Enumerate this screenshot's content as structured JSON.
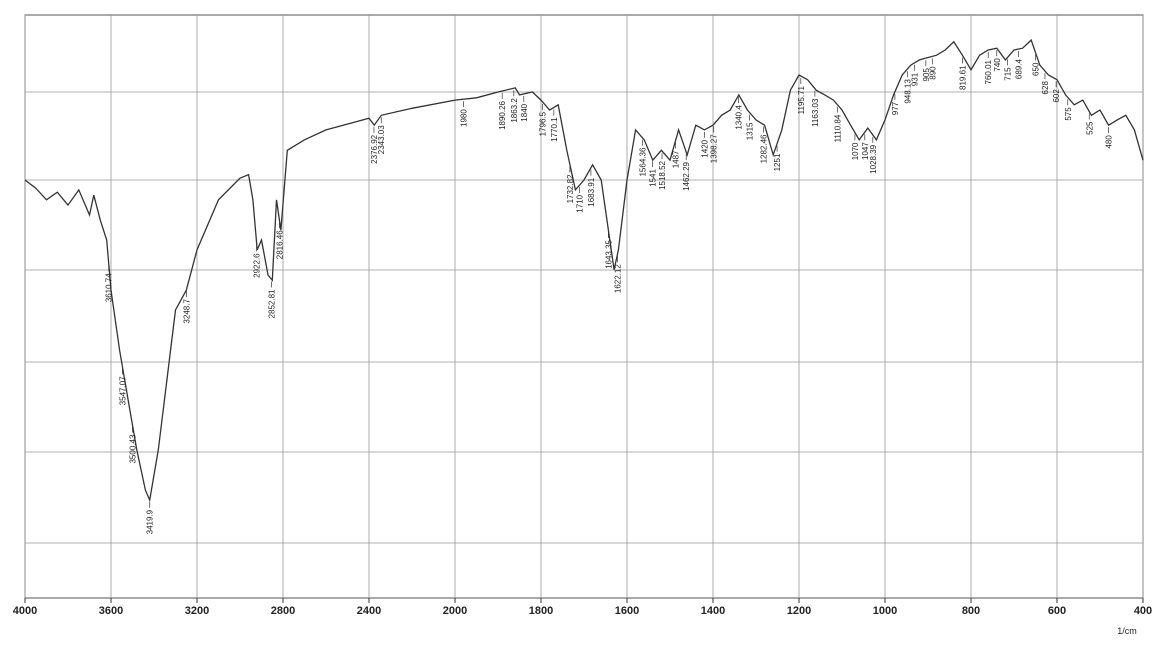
{
  "chart_data": {
    "type": "line",
    "x_label": "1/cm",
    "x": [
      4000,
      3950,
      3900,
      3850,
      3800,
      3750,
      3700,
      3680,
      3650,
      3620,
      3600,
      3560,
      3520,
      3480,
      3440,
      3420,
      3380,
      3340,
      3300,
      3250,
      3200,
      3100,
      3000,
      2960,
      2940,
      2920,
      2900,
      2870,
      2850,
      2830,
      2810,
      2780,
      2700,
      2600,
      2400,
      2376,
      2343,
      2200,
      2000,
      1950,
      1900,
      1860,
      1850,
      1820,
      1800,
      1780,
      1760,
      1740,
      1720,
      1700,
      1680,
      1660,
      1640,
      1630,
      1620,
      1600,
      1580,
      1560,
      1540,
      1520,
      1500,
      1480,
      1460,
      1440,
      1420,
      1400,
      1380,
      1360,
      1340,
      1320,
      1300,
      1280,
      1260,
      1240,
      1220,
      1200,
      1180,
      1160,
      1140,
      1120,
      1100,
      1080,
      1060,
      1040,
      1020,
      1000,
      980,
      960,
      940,
      920,
      880,
      860,
      840,
      820,
      800,
      780,
      760,
      740,
      720,
      700,
      680,
      660,
      640,
      620,
      600,
      580,
      560,
      540,
      520,
      500,
      480,
      460,
      440,
      420,
      400
    ],
    "values": [
      71.7,
      70.3,
      68.3,
      69.6,
      67.4,
      70.0,
      65.7,
      69.1,
      64.8,
      61.4,
      52.8,
      42.5,
      33.9,
      25.4,
      18.5,
      16.8,
      25.4,
      37.4,
      49.4,
      52.8,
      59.7,
      68.3,
      72.0,
      72.6,
      68.3,
      59.7,
      61.4,
      55.4,
      54.5,
      68.3,
      63.1,
      76.8,
      78.6,
      80.3,
      82.3,
      81.1,
      82.8,
      84.0,
      85.4,
      85.8,
      86.8,
      87.5,
      86.3,
      86.8,
      85.4,
      83.7,
      84.6,
      76.8,
      70.0,
      71.7,
      74.3,
      71.7,
      61.4,
      56.3,
      59.7,
      71.7,
      80.3,
      78.6,
      75.1,
      76.8,
      75.1,
      80.3,
      76.0,
      81.1,
      80.3,
      81.1,
      82.8,
      83.7,
      86.3,
      83.7,
      82.0,
      81.1,
      76.0,
      80.3,
      87.1,
      89.7,
      88.9,
      87.1,
      86.3,
      85.4,
      83.7,
      81.1,
      78.6,
      80.6,
      78.6,
      82.0,
      86.3,
      89.7,
      91.4,
      92.3,
      93.1,
      94.0,
      95.4,
      93.1,
      90.6,
      93.1,
      94.0,
      94.3,
      92.3,
      94.0,
      94.3,
      95.7,
      91.4,
      89.7,
      88.9,
      86.3,
      84.6,
      85.4,
      82.8,
      83.7,
      81.1,
      82.0,
      82.8,
      80.3,
      75.1
    ],
    "color": "#333333",
    "xlim": [
      4000,
      400
    ],
    "ylim": [
      0,
      100
    ],
    "xticks": [
      4000,
      3600,
      3200,
      2800,
      2400,
      2000,
      1800,
      1600,
      1400,
      1200,
      1000,
      800,
      600,
      400
    ],
    "grid": true,
    "peaks": [
      3610.74,
      3547.07,
      3500.43,
      3419.9,
      3248.7,
      2922.6,
      2852.81,
      2816.46,
      2376.92,
      2343.03,
      1980.0,
      1890.26,
      1863.2,
      1840.0,
      1796.5,
      1770.1,
      1732.82,
      1710.0,
      1683.91,
      1643.35,
      1622.12,
      1564.36,
      1541.0,
      1518.52,
      1487.0,
      1462.29,
      1420.0,
      1398.27,
      1340.4,
      1315.0,
      1282.46,
      1251.0,
      1195.71,
      1163.03,
      1110.84,
      1070.0,
      1047.0,
      1028.39,
      977.0,
      948.13,
      931.0,
      905.0,
      890.0,
      819.61,
      760.01,
      740.0,
      715.0,
      689.4,
      650.0,
      628.0,
      602.0,
      575.0,
      525.0,
      480.0
    ]
  }
}
